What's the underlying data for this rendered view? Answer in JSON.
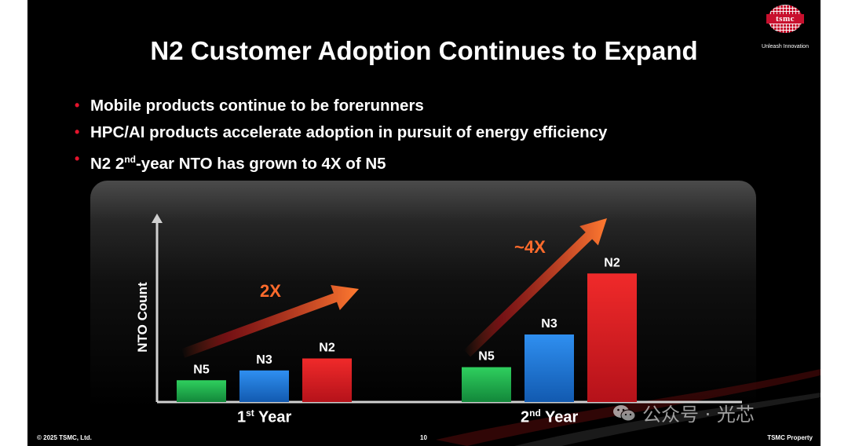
{
  "slide": {
    "title": "N2 Customer Adoption Continues to Expand",
    "logo": {
      "wordmark": "tsmc",
      "tagline": "Unleash Innovation"
    },
    "bullets": [
      {
        "text": "Mobile products continue to be forerunners"
      },
      {
        "text": "HPC/AI products accelerate adoption in pursuit of energy efficiency"
      },
      {
        "pre": "N2 2",
        "sup": "nd",
        "post": "-year NTO has grown to 4X of N5"
      }
    ],
    "footer": {
      "left": "© 2025 TSMC, Ltd.",
      "page": "10",
      "right": "TSMC Property"
    },
    "watermark": "公众号 · 光芯",
    "year_labels": [
      {
        "num": "1",
        "sup": "st",
        "word": "Year"
      },
      {
        "num": "2",
        "sup": "nd",
        "word": "Year"
      }
    ],
    "colors": {
      "accent": "#e4142c",
      "N5": "#1fb04a",
      "N3": "#1f78d6",
      "N2": "#e21f26",
      "annotation": "#ff6b2c"
    }
  },
  "chart_data": {
    "type": "bar",
    "ylabel": "NTO Count",
    "xlabel": "",
    "categories": [
      "1st Year",
      "2nd Year"
    ],
    "series": [
      {
        "name": "N5",
        "values": [
          1.0,
          1.6
        ]
      },
      {
        "name": "N3",
        "values": [
          1.45,
          3.1
        ]
      },
      {
        "name": "N2",
        "values": [
          2.0,
          5.9
        ]
      }
    ],
    "ylim": [
      0,
      8
    ],
    "grid": false,
    "legend": "none",
    "annotations": [
      {
        "text": "2X",
        "category": "1st Year"
      },
      {
        "text": "~4X",
        "category": "2nd Year"
      }
    ]
  }
}
